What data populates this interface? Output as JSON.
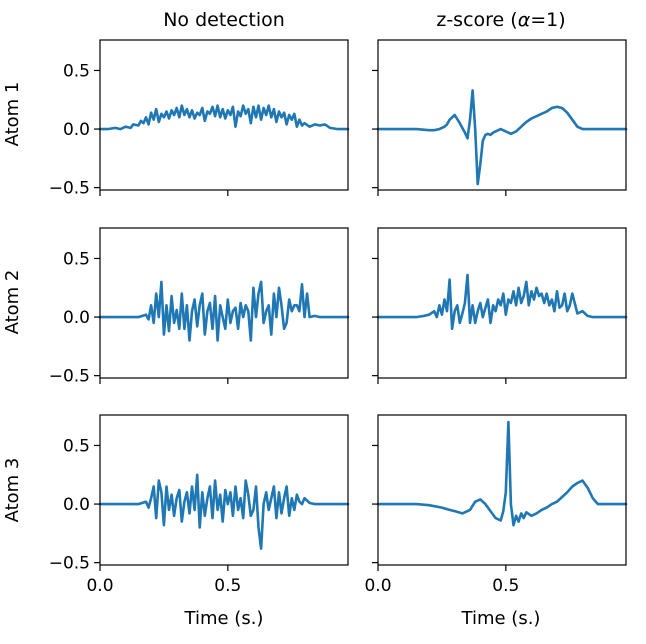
{
  "chart_data": {
    "type": "line",
    "layout": "grid",
    "rows": 3,
    "cols": 2,
    "columns": [
      {
        "title_plain": "No detection",
        "title": "No detection"
      },
      {
        "title_plain": "z-score (",
        "title_alpha": "α",
        "title_rest": "=1)",
        "title": "z-score (α=1)"
      }
    ],
    "row_labels": [
      "Atom  1",
      "Atom  2",
      "Atom  3"
    ],
    "xlabel": "Time (s.)",
    "xlim": [
      0.0,
      0.97
    ],
    "ylim": [
      -0.52,
      0.76
    ],
    "xticks": [
      0.0,
      0.5
    ],
    "xtick_labels": [
      "0.0",
      "0.5"
    ],
    "yticks": [
      0.5,
      0.0,
      -0.5
    ],
    "ytick_labels": [
      "0.5",
      "0.0",
      "−0.5"
    ],
    "line_color": "#1f77b4",
    "series": [
      {
        "name": "Atom 1 - No detection",
        "x": [
          0.0,
          0.03,
          0.06,
          0.08,
          0.1,
          0.12,
          0.13,
          0.15,
          0.16,
          0.17,
          0.18,
          0.19,
          0.2,
          0.21,
          0.22,
          0.23,
          0.24,
          0.25,
          0.26,
          0.27,
          0.28,
          0.29,
          0.3,
          0.31,
          0.32,
          0.33,
          0.34,
          0.35,
          0.36,
          0.37,
          0.38,
          0.39,
          0.4,
          0.41,
          0.42,
          0.43,
          0.44,
          0.45,
          0.46,
          0.47,
          0.48,
          0.49,
          0.5,
          0.51,
          0.52,
          0.53,
          0.54,
          0.55,
          0.56,
          0.57,
          0.58,
          0.59,
          0.6,
          0.61,
          0.62,
          0.63,
          0.64,
          0.65,
          0.66,
          0.67,
          0.68,
          0.69,
          0.7,
          0.71,
          0.72,
          0.73,
          0.74,
          0.75,
          0.76,
          0.77,
          0.78,
          0.79,
          0.8,
          0.82,
          0.84,
          0.86,
          0.88,
          0.9,
          0.93,
          0.97
        ],
        "y": [
          0.0,
          0.0,
          0.01,
          0.0,
          0.02,
          0.01,
          0.04,
          0.03,
          0.07,
          0.05,
          0.1,
          0.04,
          0.14,
          0.08,
          0.17,
          0.06,
          0.13,
          0.1,
          0.15,
          0.09,
          0.16,
          0.12,
          0.18,
          0.1,
          0.2,
          0.12,
          0.17,
          0.1,
          0.16,
          0.09,
          0.14,
          0.12,
          0.18,
          0.07,
          0.15,
          0.13,
          0.19,
          0.11,
          0.2,
          0.1,
          0.17,
          0.09,
          0.16,
          0.12,
          0.19,
          0.02,
          0.15,
          0.11,
          0.2,
          0.13,
          0.17,
          0.05,
          0.19,
          0.1,
          0.2,
          0.08,
          0.18,
          0.12,
          0.2,
          0.1,
          0.17,
          0.06,
          0.15,
          0.1,
          0.14,
          0.04,
          0.12,
          0.08,
          0.13,
          0.02,
          0.08,
          0.03,
          0.05,
          0.02,
          0.04,
          0.03,
          0.04,
          0.01,
          0.0,
          0.0
        ]
      },
      {
        "name": "Atom 1 - z-score",
        "x": [
          0.0,
          0.1,
          0.15,
          0.2,
          0.22,
          0.24,
          0.26,
          0.27,
          0.28,
          0.3,
          0.32,
          0.34,
          0.35,
          0.36,
          0.37,
          0.38,
          0.39,
          0.4,
          0.41,
          0.42,
          0.43,
          0.44,
          0.45,
          0.46,
          0.48,
          0.5,
          0.52,
          0.54,
          0.56,
          0.58,
          0.6,
          0.62,
          0.64,
          0.66,
          0.68,
          0.7,
          0.72,
          0.74,
          0.76,
          0.78,
          0.8,
          0.82,
          0.86,
          0.9,
          0.97
        ],
        "y": [
          0.0,
          0.0,
          0.0,
          -0.01,
          -0.01,
          0.0,
          0.02,
          0.04,
          0.08,
          0.12,
          0.05,
          -0.03,
          -0.08,
          0.08,
          0.33,
          0.0,
          -0.47,
          -0.3,
          -0.1,
          -0.05,
          -0.04,
          -0.05,
          -0.03,
          -0.02,
          0.0,
          -0.02,
          -0.04,
          -0.02,
          0.02,
          0.06,
          0.09,
          0.11,
          0.13,
          0.15,
          0.18,
          0.19,
          0.18,
          0.14,
          0.08,
          0.02,
          0.0,
          0.0,
          0.0,
          0.0,
          0.0
        ]
      },
      {
        "name": "Atom 2 - No detection",
        "x": [
          0.0,
          0.1,
          0.15,
          0.18,
          0.19,
          0.2,
          0.21,
          0.22,
          0.23,
          0.24,
          0.25,
          0.26,
          0.27,
          0.28,
          0.29,
          0.3,
          0.31,
          0.32,
          0.33,
          0.34,
          0.35,
          0.36,
          0.37,
          0.38,
          0.39,
          0.4,
          0.41,
          0.42,
          0.43,
          0.44,
          0.45,
          0.46,
          0.47,
          0.48,
          0.49,
          0.5,
          0.51,
          0.52,
          0.53,
          0.54,
          0.55,
          0.56,
          0.57,
          0.58,
          0.59,
          0.6,
          0.61,
          0.62,
          0.63,
          0.64,
          0.65,
          0.66,
          0.67,
          0.68,
          0.69,
          0.7,
          0.71,
          0.72,
          0.73,
          0.74,
          0.75,
          0.76,
          0.77,
          0.78,
          0.79,
          0.8,
          0.81,
          0.82,
          0.84,
          0.86,
          0.9,
          0.97
        ],
        "y": [
          0.0,
          0.0,
          0.0,
          0.02,
          -0.02,
          0.1,
          -0.05,
          0.2,
          0.0,
          0.3,
          -0.15,
          0.1,
          -0.12,
          0.18,
          -0.05,
          0.06,
          -0.1,
          0.2,
          -0.1,
          0.1,
          -0.2,
          0.05,
          0.15,
          -0.08,
          0.1,
          0.2,
          -0.15,
          0.05,
          0.12,
          -0.1,
          0.18,
          -0.2,
          0.1,
          0.0,
          -0.1,
          0.15,
          -0.05,
          0.05,
          0.08,
          -0.1,
          0.12,
          0.0,
          0.1,
          0.05,
          -0.2,
          0.25,
          0.0,
          0.2,
          0.3,
          -0.05,
          0.05,
          0.1,
          -0.15,
          0.2,
          0.0,
          0.25,
          0.1,
          -0.1,
          -0.05,
          0.15,
          0.05,
          0.1,
          0.1,
          0.05,
          0.28,
          0.0,
          0.2,
          0.0,
          0.01,
          0.0,
          0.0,
          0.0
        ]
      },
      {
        "name": "Atom 2 - z-score",
        "x": [
          0.0,
          0.1,
          0.15,
          0.18,
          0.2,
          0.22,
          0.23,
          0.24,
          0.25,
          0.26,
          0.27,
          0.28,
          0.29,
          0.3,
          0.31,
          0.32,
          0.33,
          0.34,
          0.35,
          0.36,
          0.37,
          0.38,
          0.39,
          0.4,
          0.41,
          0.42,
          0.43,
          0.44,
          0.45,
          0.46,
          0.47,
          0.48,
          0.49,
          0.5,
          0.51,
          0.52,
          0.53,
          0.54,
          0.55,
          0.56,
          0.57,
          0.58,
          0.59,
          0.6,
          0.61,
          0.62,
          0.63,
          0.64,
          0.65,
          0.66,
          0.67,
          0.68,
          0.69,
          0.7,
          0.71,
          0.72,
          0.73,
          0.74,
          0.75,
          0.76,
          0.78,
          0.8,
          0.82,
          0.84,
          0.86,
          0.9,
          0.97
        ],
        "y": [
          0.0,
          0.0,
          0.0,
          0.01,
          0.02,
          0.05,
          0.0,
          0.1,
          0.02,
          0.15,
          0.05,
          0.32,
          -0.1,
          0.05,
          0.1,
          -0.05,
          0.03,
          0.12,
          0.36,
          -0.05,
          0.1,
          -0.05,
          0.05,
          0.12,
          0.0,
          0.08,
          0.15,
          -0.05,
          0.1,
          0.05,
          0.15,
          0.1,
          0.2,
          0.02,
          0.15,
          0.12,
          0.22,
          0.1,
          0.25,
          0.12,
          0.18,
          0.3,
          0.1,
          0.22,
          0.15,
          0.25,
          0.18,
          0.2,
          0.12,
          0.2,
          0.1,
          0.15,
          0.05,
          0.22,
          0.08,
          0.1,
          0.2,
          0.05,
          0.1,
          0.2,
          0.03,
          0.05,
          0.01,
          0.0,
          0.0,
          0.0,
          0.0
        ]
      },
      {
        "name": "Atom 3 - No detection",
        "x": [
          0.0,
          0.1,
          0.15,
          0.18,
          0.19,
          0.2,
          0.21,
          0.22,
          0.23,
          0.24,
          0.25,
          0.26,
          0.27,
          0.28,
          0.29,
          0.3,
          0.31,
          0.32,
          0.33,
          0.34,
          0.35,
          0.36,
          0.37,
          0.38,
          0.39,
          0.4,
          0.41,
          0.42,
          0.43,
          0.44,
          0.45,
          0.46,
          0.47,
          0.48,
          0.49,
          0.5,
          0.51,
          0.52,
          0.53,
          0.54,
          0.55,
          0.56,
          0.57,
          0.58,
          0.59,
          0.6,
          0.61,
          0.62,
          0.63,
          0.64,
          0.65,
          0.66,
          0.67,
          0.68,
          0.69,
          0.7,
          0.71,
          0.72,
          0.73,
          0.74,
          0.75,
          0.76,
          0.77,
          0.78,
          0.79,
          0.8,
          0.82,
          0.84,
          0.86,
          0.9,
          0.97
        ],
        "y": [
          0.0,
          0.0,
          0.0,
          0.02,
          -0.03,
          0.05,
          0.15,
          -0.12,
          0.2,
          0.1,
          -0.18,
          0.15,
          -0.05,
          0.08,
          -0.1,
          0.05,
          0.12,
          -0.15,
          0.02,
          0.1,
          -0.08,
          0.15,
          -0.05,
          0.25,
          -0.2,
          0.1,
          -0.1,
          0.05,
          0.15,
          -0.12,
          0.2,
          -0.05,
          0.08,
          -0.15,
          0.12,
          0.0,
          0.1,
          -0.1,
          0.15,
          -0.05,
          0.05,
          -0.12,
          0.2,
          0.08,
          -0.1,
          -0.05,
          0.15,
          -0.2,
          -0.38,
          0.0,
          0.1,
          -0.05,
          0.05,
          0.15,
          -0.12,
          0.1,
          -0.08,
          0.05,
          0.15,
          -0.1,
          0.05,
          -0.05,
          0.08,
          0.02,
          0.0,
          0.05,
          0.01,
          0.0,
          0.0,
          0.0,
          0.0
        ]
      },
      {
        "name": "Atom 3 - z-score",
        "x": [
          0.0,
          0.1,
          0.15,
          0.2,
          0.25,
          0.28,
          0.3,
          0.33,
          0.36,
          0.38,
          0.4,
          0.42,
          0.44,
          0.46,
          0.48,
          0.49,
          0.5,
          0.51,
          0.52,
          0.53,
          0.54,
          0.55,
          0.56,
          0.57,
          0.58,
          0.6,
          0.62,
          0.64,
          0.66,
          0.68,
          0.7,
          0.72,
          0.74,
          0.76,
          0.78,
          0.8,
          0.82,
          0.84,
          0.86,
          0.88,
          0.9,
          0.97
        ],
        "y": [
          0.0,
          0.0,
          0.0,
          -0.01,
          -0.03,
          -0.05,
          -0.06,
          -0.08,
          -0.05,
          0.02,
          0.04,
          0.0,
          -0.06,
          -0.12,
          -0.14,
          -0.06,
          0.1,
          0.7,
          0.0,
          -0.18,
          -0.1,
          -0.15,
          -0.08,
          -0.12,
          -0.07,
          -0.1,
          -0.08,
          -0.05,
          -0.03,
          0.0,
          0.02,
          0.06,
          0.1,
          0.15,
          0.18,
          0.2,
          0.14,
          0.05,
          0.0,
          0.0,
          0.0,
          0.0
        ]
      }
    ]
  }
}
